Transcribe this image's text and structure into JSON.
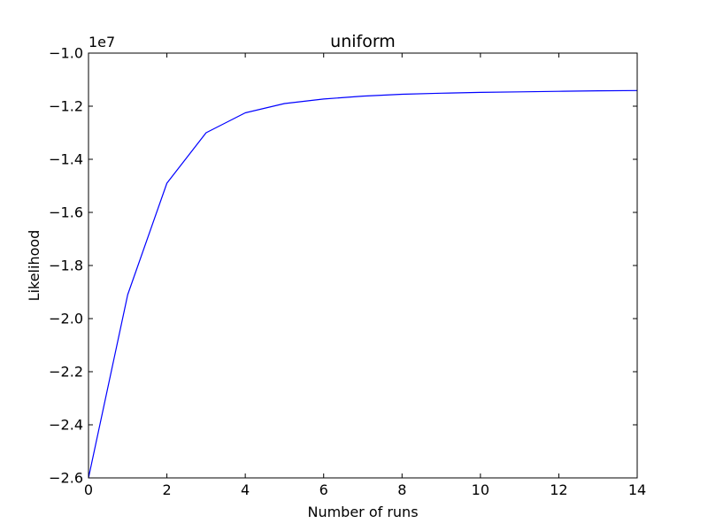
{
  "chart_data": {
    "type": "line",
    "title": "uniform",
    "xlabel": "Number of runs",
    "ylabel": "Likelihood",
    "offset_text": "1e7",
    "xlim": [
      0,
      14
    ],
    "ylim": [
      -2.6,
      -1.0
    ],
    "xticks": [
      0,
      2,
      4,
      6,
      8,
      10,
      12,
      14
    ],
    "xtick_labels": [
      "0",
      "2",
      "4",
      "6",
      "8",
      "10",
      "12",
      "14"
    ],
    "yticks": [
      -2.6,
      -2.4,
      -2.2,
      -2.0,
      -1.8,
      -1.6,
      -1.4,
      -1.2,
      -1.0
    ],
    "ytick_labels": [
      "−2.6",
      "−2.4",
      "−2.2",
      "−2.0",
      "−1.8",
      "−1.6",
      "−1.4",
      "−1.2",
      "−1.0"
    ],
    "grid": false,
    "line_color": "#0000ff",
    "series": [
      {
        "x": [
          0,
          1,
          2,
          3,
          4,
          5,
          6,
          7,
          8,
          9,
          10,
          11,
          12,
          13,
          14
        ],
        "values": [
          -2.6,
          -1.91,
          -1.49,
          -1.3,
          -1.225,
          -1.19,
          -1.173,
          -1.162,
          -1.155,
          -1.151,
          -1.148,
          -1.146,
          -1.144,
          -1.142,
          -1.141
        ]
      }
    ]
  }
}
